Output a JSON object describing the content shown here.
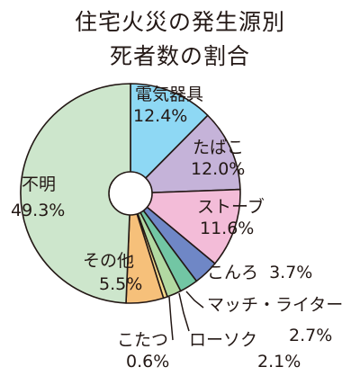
{
  "chart_data": {
    "type": "pie",
    "title_lines": [
      "住宅火災の発生源別",
      "死者数の割合"
    ],
    "slices": [
      {
        "label": "電気器具",
        "value": 12.4,
        "value_text": "12.4%",
        "color": "#8ed8f4"
      },
      {
        "label": "たばこ",
        "value": 12.0,
        "value_text": "12.0%",
        "color": "#c5b3d9"
      },
      {
        "label": "ストーブ",
        "value": 11.6,
        "value_text": "11.6%",
        "color": "#f3bcd8"
      },
      {
        "label": "こんろ",
        "value": 3.7,
        "value_text": "3.7%",
        "color": "#6f87c6"
      },
      {
        "label": "マッチ・ライター",
        "value": 2.7,
        "value_text": "2.7%",
        "color": "#72c6a4"
      },
      {
        "label": "ローソク",
        "value": 2.1,
        "value_text": "2.1%",
        "color": "#b2d9a2"
      },
      {
        "label": "こたつ",
        "value": 0.6,
        "value_text": "0.6%",
        "color": "#f6d98a"
      },
      {
        "label": "その他",
        "value": 5.5,
        "value_text": "5.5%",
        "color": "#f6c07a"
      },
      {
        "label": "不明",
        "value": 49.3,
        "value_text": "49.3%",
        "color": "#cde6cc"
      }
    ],
    "start_angle_deg": 0,
    "direction": "clockwise"
  }
}
